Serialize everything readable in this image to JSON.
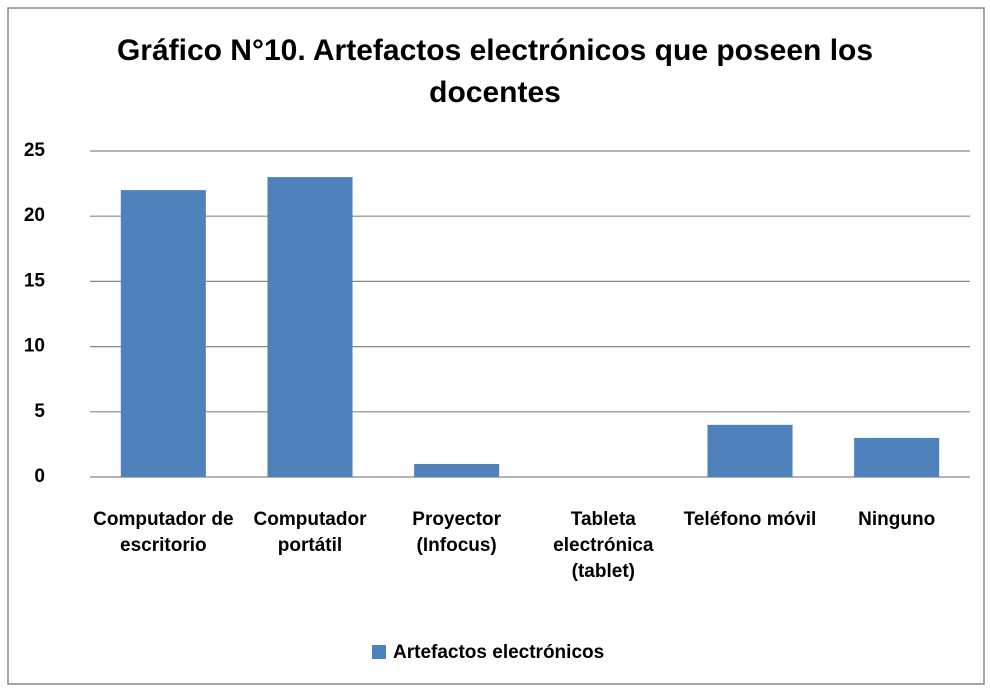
{
  "chart_data": {
    "type": "bar",
    "title": "Gráfico N°10. Artefactos electrónicos que poseen los docentes",
    "categories": [
      "Computador de escritorio",
      "Computador portátil",
      "Proyector (Infocus)",
      "Tableta electrónica (tablet)",
      "Teléfono móvil",
      "Ninguno"
    ],
    "series": [
      {
        "name": "Artefactos electrónicos",
        "color": "#4f81bd",
        "values": [
          22,
          23,
          1,
          0,
          4,
          3
        ]
      }
    ],
    "ylim": [
      0,
      25
    ],
    "yticks": [
      0,
      5,
      10,
      15,
      20,
      25
    ],
    "grid": true,
    "legend": "bottom"
  }
}
